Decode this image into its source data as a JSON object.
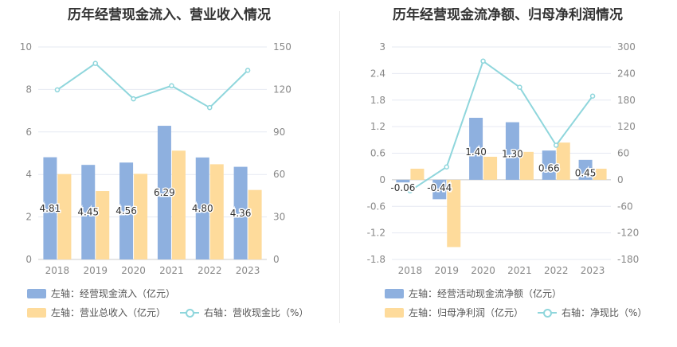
{
  "charts": [
    {
      "title": "历年经营现金流入、营业收入情况",
      "legend": {
        "bar1": "左轴：经营现金流入（亿元）",
        "bar2": "左轴：营业总收入（亿元）",
        "line": "右轴：营收现金比（%）"
      }
    },
    {
      "title": "历年经营现金流净额、归母净利润情况",
      "legend": {
        "bar1": "左轴：经营活动现金流净额（亿元）",
        "bar2": "左轴：归母净利润（亿元）",
        "line": "右轴：净现比（%）"
      }
    }
  ],
  "colors": {
    "bar1": "#8eb0df",
    "bar2": "#fedb9b",
    "line": "#8fd6dc",
    "axis_text": "#888888",
    "grid": "#e6e9f2"
  },
  "chart_data": [
    {
      "type": "bar",
      "title": "历年经营现金流入、营业收入情况",
      "categories": [
        "2018",
        "2019",
        "2020",
        "2021",
        "2022",
        "2023"
      ],
      "series": [
        {
          "name": "左轴：经营现金流入（亿元）",
          "axis": "left",
          "type": "bar",
          "values": [
            4.81,
            4.45,
            4.56,
            6.29,
            4.8,
            4.36
          ],
          "labels": [
            "4.81",
            "4.45",
            "4.56",
            "6.29",
            "4.80",
            "4.36"
          ]
        },
        {
          "name": "左轴：营业总收入（亿元）",
          "axis": "left",
          "type": "bar",
          "values": [
            4.02,
            3.22,
            4.03,
            5.12,
            4.48,
            3.27
          ]
        },
        {
          "name": "右轴：营收现金比（%）",
          "axis": "right",
          "type": "line",
          "values": [
            119.7,
            138.4,
            113.4,
            122.6,
            107.2,
            133.5
          ]
        }
      ],
      "left_axis": {
        "ticks": [
          "0",
          "2",
          "4",
          "6",
          "8",
          "10"
        ],
        "ylim": [
          0,
          10
        ]
      },
      "right_axis": {
        "ticks": [
          "0",
          "30",
          "60",
          "90",
          "120",
          "150"
        ],
        "ylim": [
          0,
          150
        ]
      },
      "grid": true,
      "legend_position": "bottom"
    },
    {
      "type": "bar",
      "title": "历年经营现金流净额、归母净利润情况",
      "categories": [
        "2018",
        "2019",
        "2020",
        "2021",
        "2022",
        "2023"
      ],
      "series": [
        {
          "name": "左轴：经营活动现金流净额（亿元）",
          "axis": "left",
          "type": "bar",
          "values": [
            -0.06,
            -0.44,
            1.4,
            1.3,
            0.66,
            0.45
          ],
          "labels": [
            "-0.06",
            "-0.44",
            "1.40",
            "1.30",
            "0.66",
            "0.45"
          ]
        },
        {
          "name": "左轴：归母净利润（亿元）",
          "axis": "left",
          "type": "bar",
          "values": [
            0.25,
            -1.52,
            0.52,
            0.63,
            0.84,
            0.25
          ]
        },
        {
          "name": "右轴：净现比（%）",
          "axis": "right",
          "type": "line",
          "values": [
            -25,
            29,
            268,
            209,
            78,
            189
          ]
        }
      ],
      "left_axis": {
        "ticks": [
          "-1.8",
          "-1.2",
          "-0.6",
          "0",
          "0.6",
          "1.2",
          "1.8",
          "2.4",
          "3"
        ],
        "ylim": [
          -1.8,
          3
        ]
      },
      "right_axis": {
        "ticks": [
          "-180",
          "-120",
          "-60",
          "0",
          "60",
          "120",
          "180",
          "240",
          "300"
        ],
        "ylim": [
          -180,
          300
        ]
      },
      "grid": true,
      "legend_position": "bottom"
    }
  ]
}
